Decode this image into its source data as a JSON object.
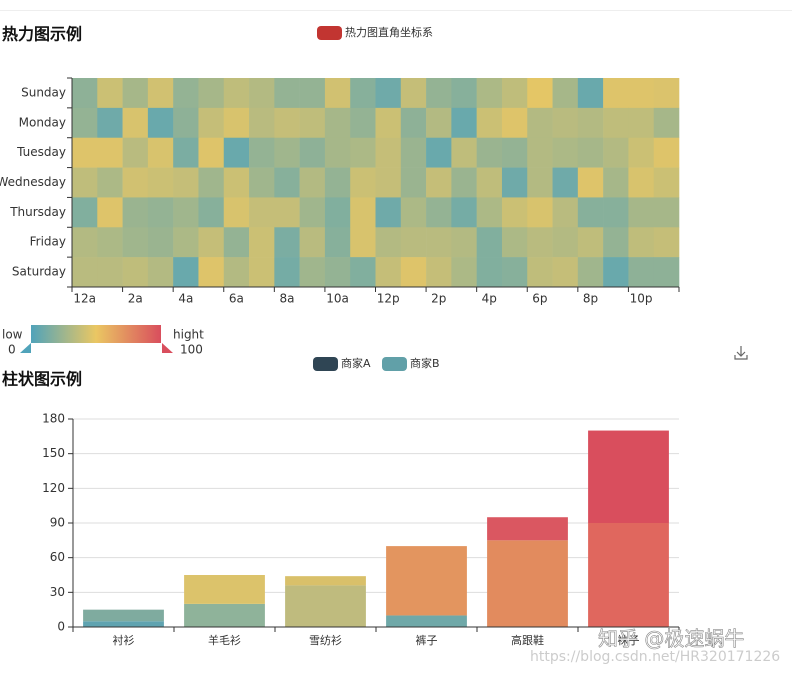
{
  "chart_data": [
    {
      "type": "heatmap",
      "title": "热力图示例",
      "legend": "热力图直角坐标系",
      "legend_color": "#c23531",
      "x": [
        "12a",
        null,
        "2a",
        null,
        "4a",
        null,
        "6a",
        null,
        "8a",
        null,
        "10a",
        null,
        "12p",
        null,
        "2p",
        null,
        "4p",
        null,
        "6p",
        null,
        "8p",
        null,
        "10p",
        null
      ],
      "y": [
        "Sunday",
        "Monday",
        "Tuesday",
        "Wednesday",
        "Thursday",
        "Friday",
        "Saturday"
      ],
      "values": [
        [
          20,
          40,
          28,
          42,
          22,
          28,
          36,
          32,
          22,
          22,
          42,
          18,
          10,
          38,
          22,
          18,
          30,
          36,
          48,
          28,
          8,
          46,
          46,
          45
        ],
        [
          22,
          10,
          44,
          8,
          20,
          38,
          44,
          34,
          38,
          36,
          28,
          22,
          40,
          20,
          32,
          8,
          40,
          46,
          32,
          34,
          32,
          36,
          36,
          28
        ],
        [
          46,
          46,
          34,
          44,
          14,
          46,
          8,
          22,
          26,
          20,
          28,
          30,
          38,
          24,
          8,
          36,
          24,
          22,
          32,
          30,
          28,
          32,
          40,
          46
        ],
        [
          36,
          30,
          42,
          40,
          38,
          26,
          40,
          26,
          18,
          32,
          22,
          40,
          38,
          24,
          38,
          24,
          36,
          10,
          32,
          10,
          46,
          28,
          44,
          40
        ],
        [
          16,
          46,
          24,
          22,
          26,
          18,
          44,
          38,
          38,
          26,
          16,
          44,
          10,
          30,
          22,
          12,
          30,
          40,
          44,
          34,
          18,
          18,
          28,
          28
        ],
        [
          32,
          30,
          26,
          24,
          30,
          38,
          22,
          40,
          14,
          34,
          18,
          44,
          32,
          34,
          34,
          32,
          16,
          30,
          34,
          32,
          36,
          22,
          36,
          38
        ],
        [
          34,
          34,
          36,
          32,
          8,
          46,
          32,
          40,
          12,
          26,
          22,
          16,
          38,
          46,
          38,
          30,
          16,
          18,
          36,
          38,
          26,
          8,
          20,
          20
        ]
      ],
      "visual_map": {
        "min": 0,
        "max": 100,
        "text_low": "low",
        "text_high": "hight",
        "colors": [
          "#50a3ba",
          "#eac763",
          "#d94e5d"
        ]
      }
    },
    {
      "type": "bar",
      "title": "柱状图示例",
      "stacked": true,
      "categories": [
        "衬衫",
        "羊毛衫",
        "雪纺衫",
        "裤子",
        "高跟鞋",
        "袜子"
      ],
      "series": [
        {
          "name": "商家A",
          "color": "#2f4554",
          "values": [
            5,
            20,
            36,
            10,
            75,
            90
          ],
          "colors": [
            "#5fa3b0",
            "#8fb39a",
            "#bfbb7e",
            "#6fa8a8",
            "#e28b5e",
            "#e0675e"
          ]
        },
        {
          "name": "商家B",
          "color": "#61a0a8",
          "values": [
            10,
            25,
            8,
            60,
            20,
            80
          ],
          "colors": [
            "#7fab9f",
            "#dcc36b",
            "#d9c06a",
            "#e3955f",
            "#da5761",
            "#d94e5d"
          ]
        }
      ],
      "ylim": [
        0,
        180
      ],
      "yticks": [
        0,
        30,
        60,
        90,
        120,
        150,
        180
      ],
      "grid": true
    }
  ],
  "watermark": "知乎 @极速蜗牛",
  "watermark_url": "https://blog.csdn.net/HR320171226"
}
